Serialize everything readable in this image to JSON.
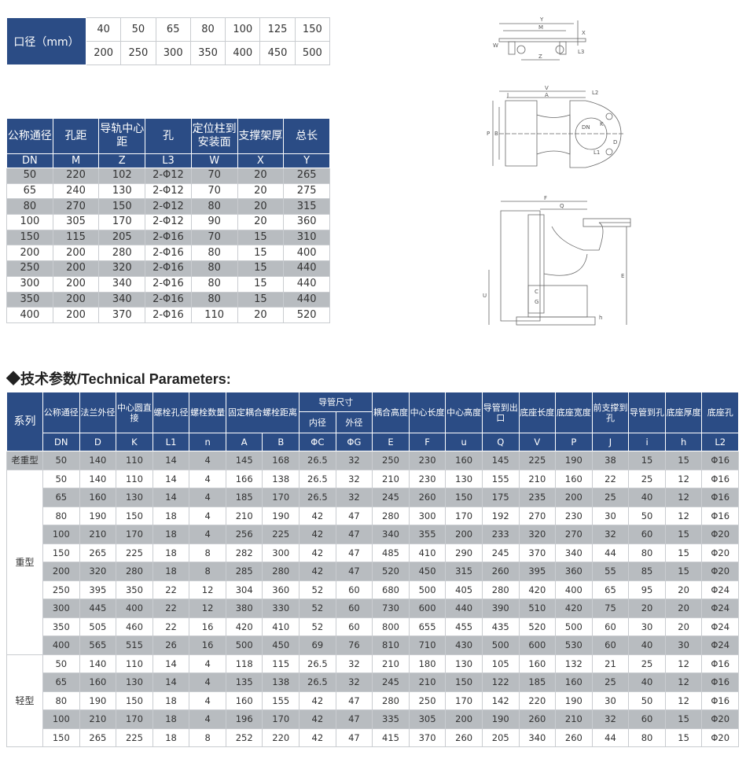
{
  "bore_table": {
    "label": "口径（mm）",
    "rows": [
      [
        "40",
        "50",
        "65",
        "80",
        "100",
        "125",
        "150"
      ],
      [
        "200",
        "250",
        "300",
        "350",
        "400",
        "450",
        "500"
      ]
    ]
  },
  "rail_table": {
    "headers": [
      "公称通径",
      "孔距",
      "导轨中心距",
      "孔",
      "定位柱到安装面",
      "支撑架厚",
      "总长"
    ],
    "symbols": [
      "DN",
      "M",
      "Z",
      "L3",
      "W",
      "X",
      "Y"
    ],
    "rows": [
      [
        "50",
        "220",
        "102",
        "2-Φ12",
        "70",
        "20",
        "265"
      ],
      [
        "65",
        "240",
        "130",
        "2-Φ12",
        "70",
        "20",
        "275"
      ],
      [
        "80",
        "270",
        "150",
        "2-Φ12",
        "80",
        "20",
        "315"
      ],
      [
        "100",
        "305",
        "170",
        "2-Φ12",
        "90",
        "20",
        "360"
      ],
      [
        "150",
        "115",
        "205",
        "2-Φ16",
        "70",
        "15",
        "310"
      ],
      [
        "200",
        "200",
        "280",
        "2-Φ16",
        "80",
        "15",
        "400"
      ],
      [
        "250",
        "200",
        "320",
        "2-Φ16",
        "80",
        "15",
        "440"
      ],
      [
        "300",
        "200",
        "340",
        "2-Φ16",
        "80",
        "15",
        "440"
      ],
      [
        "350",
        "200",
        "340",
        "2-Φ16",
        "80",
        "15",
        "440"
      ],
      [
        "400",
        "200",
        "370",
        "2-Φ16",
        "110",
        "20",
        "520"
      ]
    ]
  },
  "section_title": "◆技术参数/Technical Parameters:",
  "params_table": {
    "series_header": "系列",
    "headers": [
      "公称通径",
      "法兰外径",
      "中心圆直接",
      "螺栓孔径",
      "螺栓数量",
      "固定耦合螺栓距离",
      "导管尺寸",
      "耦合高度",
      "中心长度",
      "中心高度",
      "导管到出口",
      "底座长度",
      "底座宽度",
      "前支撑到孔",
      "导管到孔",
      "底座厚度",
      "底座孔"
    ],
    "sub_headers": [
      "内径",
      "外径"
    ],
    "symbols": [
      "DN",
      "D",
      "K",
      "L1",
      "n",
      "A",
      "B",
      "ΦC",
      "ΦG",
      "E",
      "F",
      "u",
      "Q",
      "V",
      "P",
      "J",
      "i",
      "h",
      "L2"
    ],
    "groups": [
      {
        "name": "老重型",
        "rows": [
          [
            "50",
            "140",
            "110",
            "14",
            "4",
            "145",
            "168",
            "26.5",
            "32",
            "250",
            "230",
            "160",
            "145",
            "225",
            "190",
            "38",
            "15",
            "15",
            "Φ16"
          ]
        ]
      },
      {
        "name": "重型",
        "rows": [
          [
            "50",
            "140",
            "110",
            "14",
            "4",
            "166",
            "138",
            "26.5",
            "32",
            "210",
            "230",
            "130",
            "155",
            "210",
            "160",
            "22",
            "25",
            "12",
            "Φ16"
          ],
          [
            "65",
            "160",
            "130",
            "14",
            "4",
            "185",
            "170",
            "26.5",
            "32",
            "245",
            "260",
            "150",
            "175",
            "235",
            "200",
            "25",
            "40",
            "12",
            "Φ16"
          ],
          [
            "80",
            "190",
            "150",
            "18",
            "4",
            "210",
            "190",
            "42",
            "47",
            "280",
            "300",
            "170",
            "192",
            "270",
            "230",
            "30",
            "50",
            "12",
            "Φ16"
          ],
          [
            "100",
            "210",
            "170",
            "18",
            "4",
            "256",
            "225",
            "42",
            "47",
            "340",
            "355",
            "200",
            "233",
            "320",
            "270",
            "32",
            "60",
            "15",
            "Φ20"
          ],
          [
            "150",
            "265",
            "225",
            "18",
            "8",
            "282",
            "300",
            "42",
            "47",
            "485",
            "410",
            "290",
            "245",
            "370",
            "340",
            "44",
            "80",
            "15",
            "Φ20"
          ],
          [
            "200",
            "320",
            "280",
            "18",
            "8",
            "285",
            "280",
            "42",
            "47",
            "520",
            "450",
            "315",
            "260",
            "395",
            "360",
            "55",
            "85",
            "15",
            "Φ20"
          ],
          [
            "250",
            "395",
            "350",
            "22",
            "12",
            "304",
            "360",
            "52",
            "60",
            "680",
            "500",
            "405",
            "280",
            "420",
            "400",
            "65",
            "95",
            "20",
            "Φ24"
          ],
          [
            "300",
            "445",
            "400",
            "22",
            "12",
            "380",
            "330",
            "52",
            "60",
            "730",
            "600",
            "440",
            "390",
            "510",
            "420",
            "75",
            "20",
            "20",
            "Φ24"
          ],
          [
            "350",
            "505",
            "460",
            "22",
            "16",
            "420",
            "410",
            "52",
            "60",
            "800",
            "655",
            "455",
            "435",
            "520",
            "500",
            "60",
            "30",
            "20",
            "Φ24"
          ],
          [
            "400",
            "565",
            "515",
            "26",
            "16",
            "500",
            "450",
            "69",
            "76",
            "810",
            "710",
            "430",
            "500",
            "600",
            "530",
            "60",
            "40",
            "30",
            "Φ24"
          ]
        ]
      },
      {
        "name": "轻型",
        "rows": [
          [
            "50",
            "140",
            "110",
            "14",
            "4",
            "118",
            "115",
            "26.5",
            "32",
            "210",
            "180",
            "130",
            "105",
            "160",
            "132",
            "21",
            "25",
            "12",
            "Φ16"
          ],
          [
            "65",
            "160",
            "130",
            "14",
            "4",
            "135",
            "138",
            "26.5",
            "32",
            "245",
            "210",
            "150",
            "122",
            "185",
            "160",
            "25",
            "40",
            "12",
            "Φ16"
          ],
          [
            "80",
            "190",
            "150",
            "18",
            "4",
            "160",
            "155",
            "42",
            "47",
            "280",
            "250",
            "170",
            "142",
            "220",
            "190",
            "30",
            "50",
            "12",
            "Φ16"
          ],
          [
            "100",
            "210",
            "170",
            "18",
            "4",
            "196",
            "170",
            "42",
            "47",
            "335",
            "305",
            "200",
            "190",
            "260",
            "210",
            "32",
            "60",
            "15",
            "Φ20"
          ],
          [
            "150",
            "265",
            "225",
            "18",
            "8",
            "252",
            "220",
            "42",
            "47",
            "415",
            "370",
            "260",
            "205",
            "340",
            "260",
            "44",
            "80",
            "15",
            "Φ20"
          ]
        ]
      }
    ]
  },
  "drawings": {
    "top_view": {
      "Y": "Y",
      "M": "M",
      "X": "X",
      "W": "W",
      "L3": "L3",
      "Z": "Z"
    },
    "plan_view": {
      "V": "V",
      "A": "A",
      "J": "J",
      "L2": "L2",
      "P": "P",
      "B": "B",
      "DN": "DN",
      "K": "K",
      "D": "D",
      "L1": "L1"
    },
    "side_view": {
      "F": "F",
      "Q": "Q",
      "E": "E",
      "U": "U",
      "h": "h",
      "C": "C",
      "G": "G"
    }
  },
  "colors": {
    "header_blue": "#2b4c85",
    "row_gray": "#b8bcc0"
  }
}
